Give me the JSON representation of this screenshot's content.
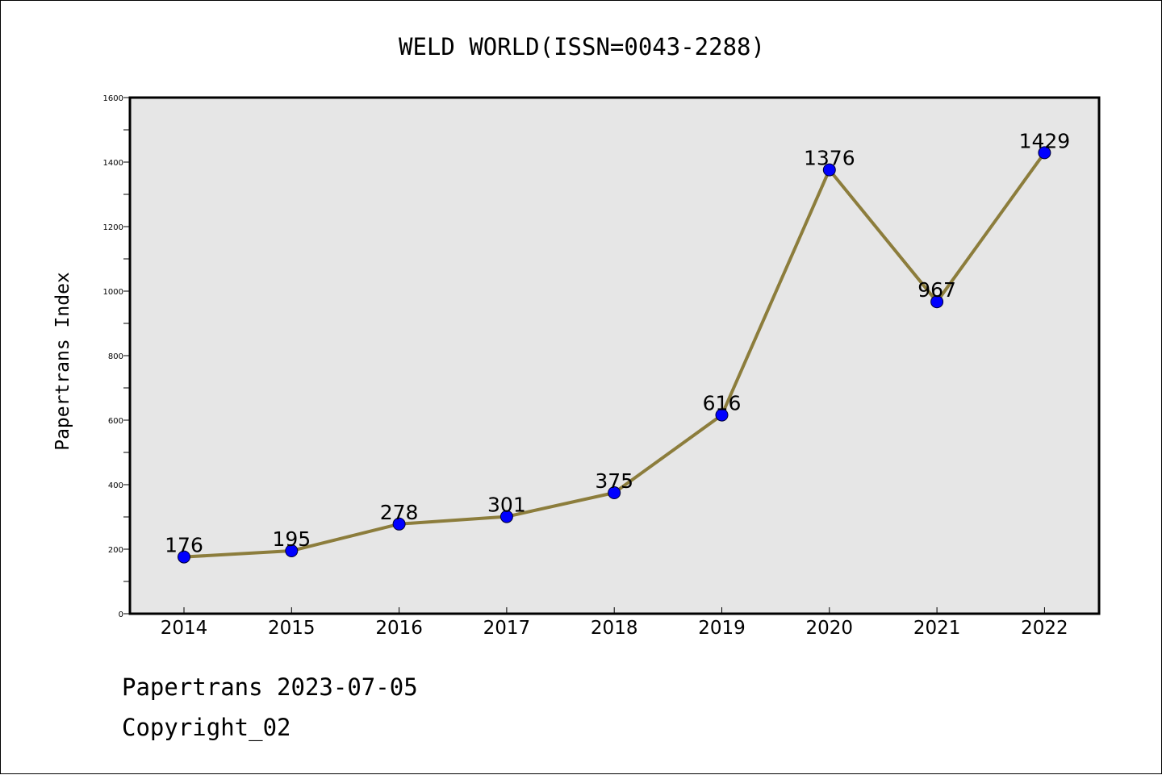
{
  "chart_data": {
    "type": "line",
    "title": "WELD WORLD(ISSN=0043-2288)",
    "xlabel": "",
    "ylabel": "Papertrans Index",
    "categories": [
      "2014",
      "2015",
      "2016",
      "2017",
      "2018",
      "2019",
      "2020",
      "2021",
      "2022"
    ],
    "series": [
      {
        "values": [
          176,
          195,
          278,
          301,
          375,
          616,
          1376,
          967,
          1429
        ]
      }
    ],
    "data_labels": [
      "176",
      "195",
      "278",
      "301",
      "375",
      "616",
      "1376",
      "967",
      "1429"
    ],
    "ylim": [
      0,
      1600
    ],
    "yticks": [
      0,
      200,
      400,
      600,
      800,
      1000,
      1200,
      1400,
      1600
    ],
    "ytick_labels": [
      "0",
      "200",
      "400",
      "600",
      "800",
      "1000",
      "1200",
      "1400",
      "1600"
    ],
    "grid": false,
    "legend": "none",
    "colors": {
      "plot_background": "#e6e6e6",
      "line": "#8c7d3c",
      "marker": "#0000ff",
      "axes": "#000000"
    }
  },
  "footer": {
    "line1": "Papertrans 2023-07-05",
    "line2": "Copyright_02"
  }
}
